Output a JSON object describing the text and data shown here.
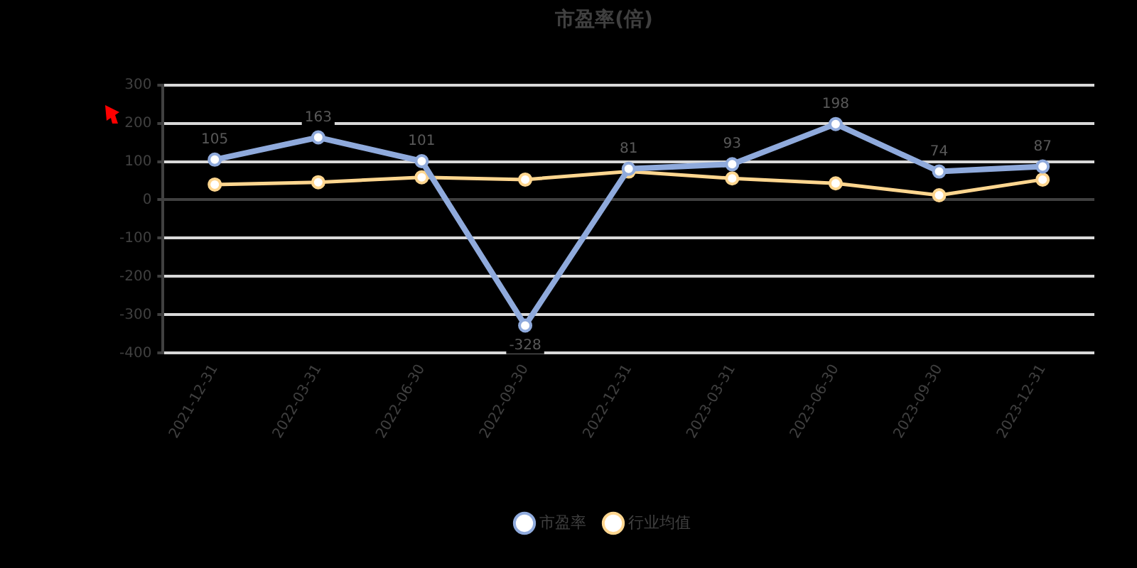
{
  "chart_data": {
    "type": "line",
    "title": "市盈率(倍)",
    "categories": [
      "2021-12-31",
      "2022-03-31",
      "2022-06-30",
      "2022-09-30",
      "2022-12-31",
      "2023-03-31",
      "2023-06-30",
      "2023-09-30",
      "2023-12-31"
    ],
    "series": [
      {
        "name": "市盈率",
        "color": "#8faadc",
        "values": [
          105,
          163,
          101,
          -328,
          81,
          93,
          198,
          74,
          87
        ],
        "value_labels": [
          "105",
          "163",
          "101",
          "-328",
          "81",
          "93",
          "198",
          "74",
          "87"
        ]
      },
      {
        "name": "行业均值",
        "color": "#ffd68f",
        "values": [
          40,
          46,
          59,
          53,
          74,
          56,
          43,
          12,
          53
        ]
      }
    ],
    "ylim": [
      -400,
      300
    ],
    "yticks": [
      -400,
      -300,
      -200,
      -100,
      0,
      100,
      200,
      300
    ],
    "grid": "y",
    "legend": "bottom",
    "marker": "circle"
  }
}
